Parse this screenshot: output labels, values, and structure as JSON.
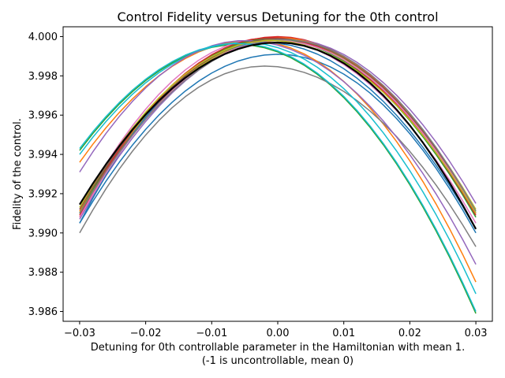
{
  "chart_data": {
    "type": "line",
    "title": "Control Fidelity versus Detuning for the 0th control",
    "xlabel": "Detuning for 0th controllable parameter in the Hamiltonian with mean 1.",
    "xlabel_line2": "(-1 is uncontrollable, mean 0)",
    "ylabel": "Fidelity of the control.",
    "xlim": [
      -0.0325,
      0.0325
    ],
    "ylim": [
      3.9855,
      4.0005
    ],
    "xticks": [
      -0.03,
      -0.02,
      -0.01,
      0.0,
      0.01,
      0.02,
      0.03
    ],
    "xtick_labels": [
      "−0.03",
      "−0.02",
      "−0.01",
      "0.00",
      "0.01",
      "0.02",
      "0.03"
    ],
    "yticks": [
      3.986,
      3.988,
      3.99,
      3.992,
      3.994,
      3.996,
      3.998,
      4.0
    ],
    "ytick_labels": [
      "3.986",
      "3.988",
      "3.990",
      "3.992",
      "3.994",
      "3.996",
      "3.998",
      "4.000"
    ],
    "grid": false,
    "legend": "none",
    "x_range": [
      -0.03,
      0.03
    ],
    "series": [
      {
        "color": "#1f77b4",
        "peak_x": 0.0,
        "peak_y": 3.9991,
        "end_left": 3.9905,
        "end_right": 3.99
      },
      {
        "color": "#ff7f0e",
        "peak_x": -0.004,
        "peak_y": 3.9998,
        "end_left": 3.9936,
        "end_right": 3.9875
      },
      {
        "color": "#2ca02c",
        "peak_x": -0.006,
        "peak_y": 3.9996,
        "end_left": 3.9942,
        "end_right": 3.9859
      },
      {
        "color": "#d62728",
        "peak_x": 0.0,
        "peak_y": 4.0,
        "end_left": 3.9908,
        "end_right": 3.991
      },
      {
        "color": "#9467bd",
        "peak_x": 0.001,
        "peak_y": 3.9999,
        "end_left": 3.9907,
        "end_right": 3.9915
      },
      {
        "color": "#8c564b",
        "peak_x": 0.0,
        "peak_y": 3.9998,
        "end_left": 3.991,
        "end_right": 3.991
      },
      {
        "color": "#e377c2",
        "peak_x": -0.002,
        "peak_y": 3.9999,
        "end_left": 3.9912,
        "end_right": 3.9905
      },
      {
        "color": "#7f7f7f",
        "peak_x": -0.002,
        "peak_y": 3.9985,
        "end_left": 3.99,
        "end_right": 3.9893
      },
      {
        "color": "#bcbd22",
        "peak_x": 0.0,
        "peak_y": 3.99985,
        "end_left": 3.9911,
        "end_right": 3.9912
      },
      {
        "color": "#17becf",
        "peak_x": -0.005,
        "peak_y": 3.9997,
        "end_left": 3.994,
        "end_right": 3.9869
      },
      {
        "color": "#1f77b4",
        "peak_x": -0.002,
        "peak_y": 3.9997,
        "end_left": 3.9905,
        "end_right": 3.9902
      },
      {
        "color": "#ff7f0e",
        "peak_x": 0.0,
        "peak_y": 3.99995,
        "end_left": 3.9911,
        "end_right": 3.991
      },
      {
        "color": "#2ca02c",
        "peak_x": -0.001,
        "peak_y": 3.9999,
        "end_left": 3.991,
        "end_right": 3.9908
      },
      {
        "color": "#d62728",
        "peak_x": -0.001,
        "peak_y": 3.99995,
        "end_left": 3.9909,
        "end_right": 3.9909
      },
      {
        "color": "#9467bd",
        "peak_x": -0.005,
        "peak_y": 3.9998,
        "end_left": 3.9931,
        "end_right": 3.9884
      },
      {
        "color": "#8c564b",
        "peak_x": 0.0,
        "peak_y": 3.9999,
        "end_left": 3.9912,
        "end_right": 3.9911
      },
      {
        "color": "#e377c2",
        "peak_x": 0.0,
        "peak_y": 3.9998,
        "end_left": 3.9908,
        "end_right": 3.991
      },
      {
        "color": "#7f7f7f",
        "peak_x": 0.001,
        "peak_y": 3.99985,
        "end_left": 3.991,
        "end_right": 3.9911
      },
      {
        "color": "#bcbd22",
        "peak_x": -0.001,
        "peak_y": 3.9998,
        "end_left": 3.9913,
        "end_right": 3.991
      },
      {
        "color": "#17becf",
        "peak_x": -0.006,
        "peak_y": 3.99965,
        "end_left": 3.9943,
        "end_right": 3.986
      },
      {
        "color": "#000000",
        "peak_x": 0.0,
        "peak_y": 3.9997,
        "end_left": 3.99145,
        "end_right": 3.9902
      }
    ]
  }
}
